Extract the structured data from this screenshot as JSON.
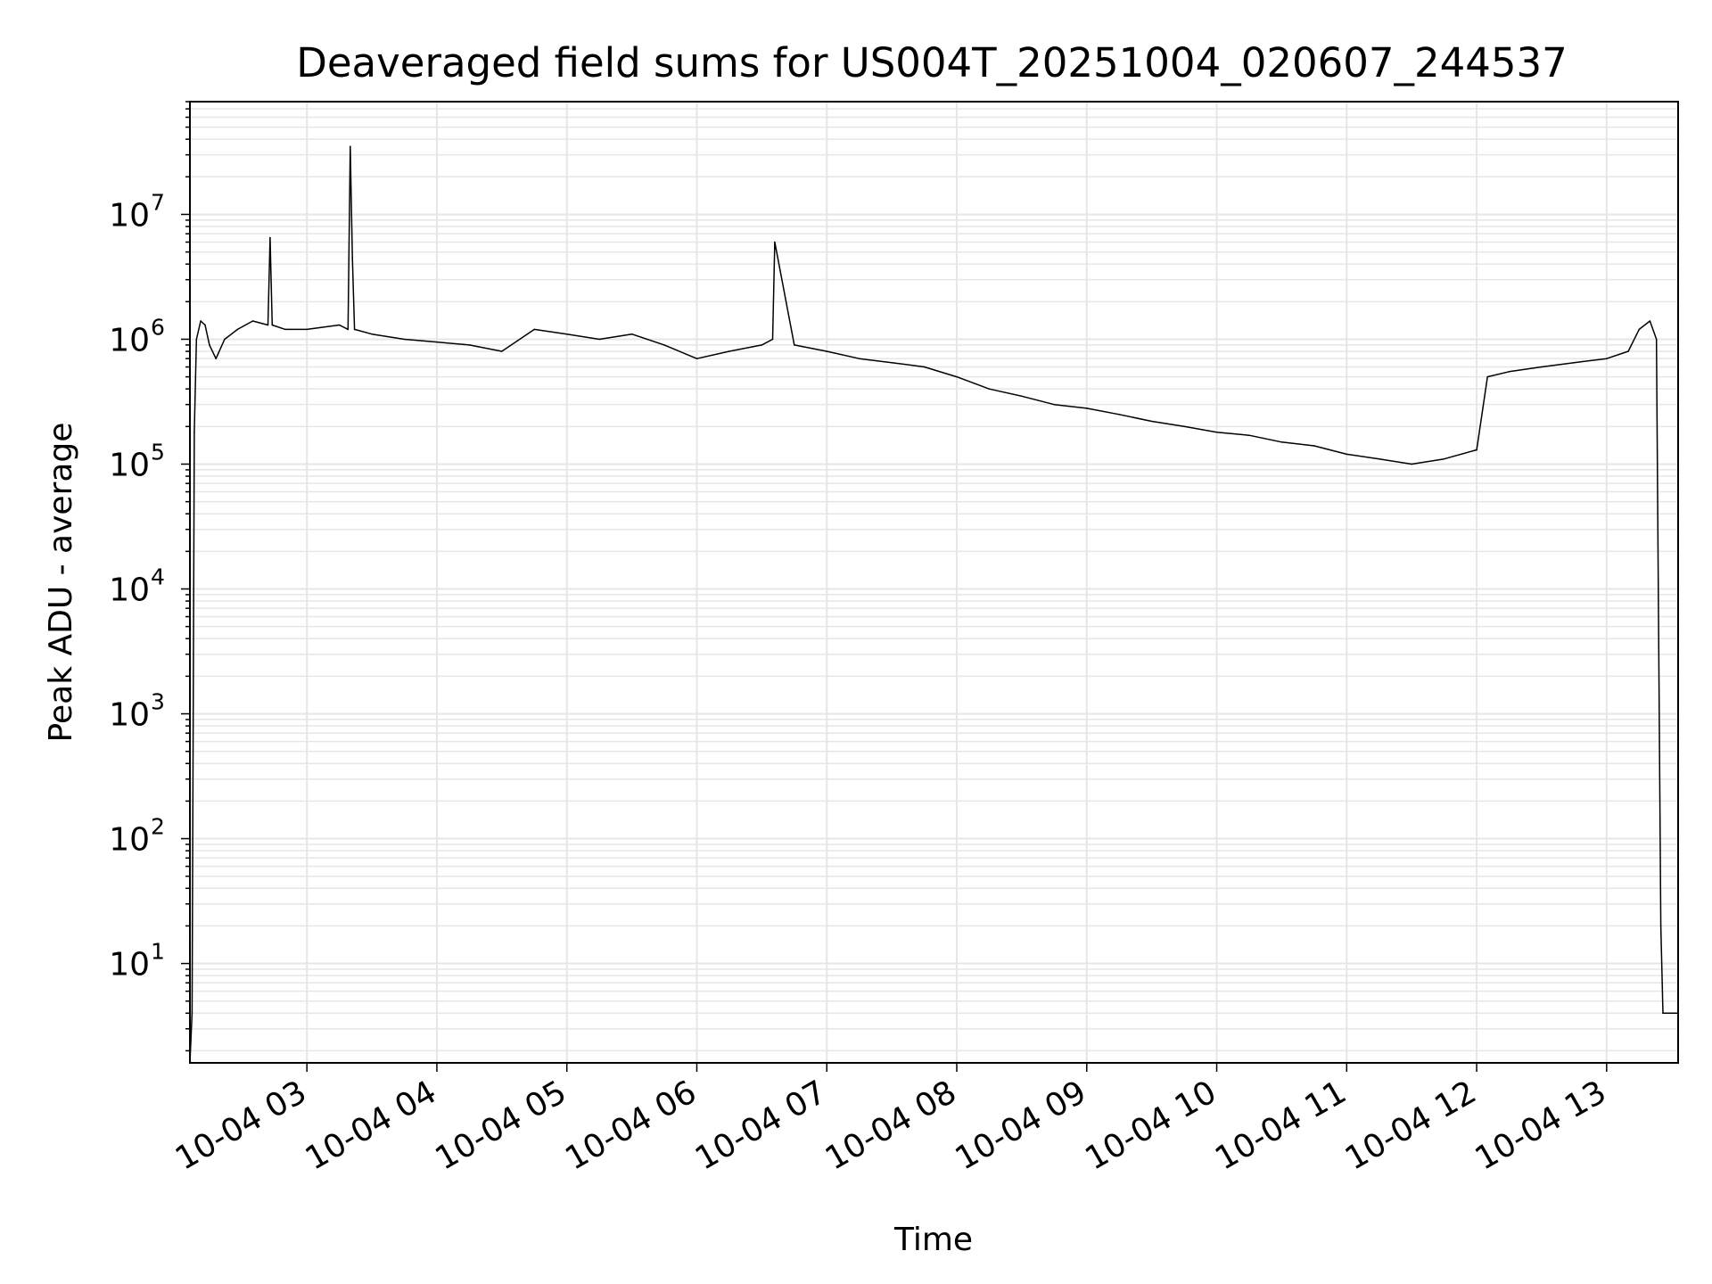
{
  "chart_data": {
    "type": "line",
    "title": "Deaveraged field sums for US004T_20251004_020607_244537",
    "xlabel": "Time",
    "ylabel": "Peak ADU - average",
    "y_scale": "log",
    "ylim": [
      1.6,
      80000000
    ],
    "xlim": [
      "10-04 02:06",
      "10-04 13:33"
    ],
    "grid": true,
    "line_color": "#000000",
    "grid_color": "#e6e6e6",
    "x_ticks": [
      "10-04 03",
      "10-04 04",
      "10-04 05",
      "10-04 06",
      "10-04 07",
      "10-04 08",
      "10-04 09",
      "10-04 10",
      "10-04 11",
      "10-04 12",
      "10-04 13"
    ],
    "y_ticks": [
      {
        "base": "10",
        "exp": "1"
      },
      {
        "base": "10",
        "exp": "2"
      },
      {
        "base": "10",
        "exp": "3"
      },
      {
        "base": "10",
        "exp": "4"
      },
      {
        "base": "10",
        "exp": "5"
      },
      {
        "base": "10",
        "exp": "6"
      },
      {
        "base": "10",
        "exp": "7"
      }
    ],
    "series": [
      {
        "x": [
          "10-04 02:06",
          "10-04 02:07",
          "10-04 02:08",
          "10-04 02:09",
          "10-04 02:11",
          "10-04 02:13",
          "10-04 02:15",
          "10-04 02:18",
          "10-04 02:22",
          "10-04 02:28",
          "10-04 02:35",
          "10-04 02:42",
          "10-04 02:43",
          "10-04 02:44",
          "10-04 02:50",
          "10-04 03:00",
          "10-04 03:15",
          "10-04 03:19",
          "10-04 03:20",
          "10-04 03:21",
          "10-04 03:22",
          "10-04 03:30",
          "10-04 03:45",
          "10-04 04:00",
          "10-04 04:15",
          "10-04 04:30",
          "10-04 04:45",
          "10-04 05:00",
          "10-04 05:15",
          "10-04 05:30",
          "10-04 05:45",
          "10-04 06:00",
          "10-04 06:15",
          "10-04 06:30",
          "10-04 06:35",
          "10-04 06:36",
          "10-04 06:45",
          "10-04 07:00",
          "10-04 07:15",
          "10-04 07:30",
          "10-04 07:45",
          "10-04 08:00",
          "10-04 08:15",
          "10-04 08:30",
          "10-04 08:45",
          "10-04 09:00",
          "10-04 09:15",
          "10-04 09:30",
          "10-04 09:45",
          "10-04 10:00",
          "10-04 10:15",
          "10-04 10:30",
          "10-04 10:45",
          "10-04 11:00",
          "10-04 11:15",
          "10-04 11:30",
          "10-04 11:45",
          "10-04 12:00",
          "10-04 12:05",
          "10-04 12:15",
          "10-04 12:30",
          "10-04 12:45",
          "10-04 13:00",
          "10-04 13:10",
          "10-04 13:15",
          "10-04 13:20",
          "10-04 13:23",
          "10-04 13:25",
          "10-04 13:26",
          "10-04 13:33"
        ],
        "y": [
          1.6,
          4,
          180000,
          1000000,
          1400000,
          1300000,
          900000,
          700000,
          1000000,
          1200000,
          1400000,
          1300000,
          6500000,
          1300000,
          1200000,
          1200000,
          1300000,
          1200000,
          35000000,
          4500000,
          1200000,
          1100000,
          1000000,
          950000,
          900000,
          800000,
          1200000,
          1100000,
          1000000,
          1100000,
          900000,
          700000,
          800000,
          900000,
          1000000,
          6000000,
          900000,
          800000,
          700000,
          650000,
          600000,
          500000,
          400000,
          350000,
          300000,
          280000,
          250000,
          220000,
          200000,
          180000,
          170000,
          150000,
          140000,
          120000,
          110000,
          100000,
          110000,
          130000,
          500000,
          550000,
          600000,
          650000,
          700000,
          800000,
          1200000,
          1400000,
          1000000,
          20,
          4,
          4
        ]
      }
    ]
  }
}
